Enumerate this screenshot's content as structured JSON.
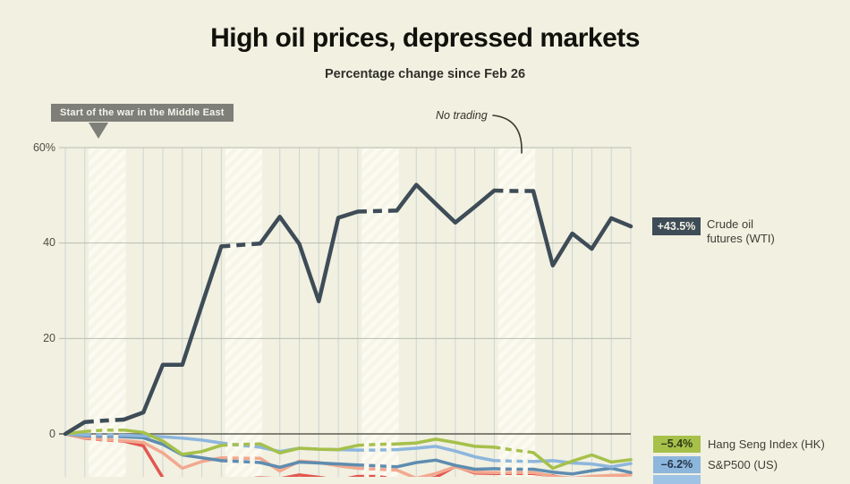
{
  "header": {
    "title": "High oil prices, depressed markets",
    "subtitle": "Percentage change since Feb 26"
  },
  "annotations": {
    "war_label": "Start of the war in the Middle East",
    "no_trading_label": "No trading"
  },
  "y_axis": {
    "labels": [
      "60%",
      "40",
      "20",
      "0"
    ],
    "values": [
      60,
      40,
      20,
      0
    ]
  },
  "legend": {
    "crude": {
      "badge": "+43.5%",
      "line1": "Crude oil",
      "line2": "futures (WTI)",
      "badge_color": "#3e4c57"
    },
    "hang_seng": {
      "badge": "–5.4%",
      "label": "Hang Seng Index (HK)",
      "badge_color": "#a6c04a"
    },
    "sp500": {
      "badge": "–6.2%",
      "label": "S&P500 (US)",
      "badge_color": "#8db6dd"
    },
    "cut_badge_color": "#9fc3e4"
  },
  "colors": {
    "background": "#f1f0e1",
    "band_base": "#f6f5e8",
    "band_stripe": "#fcfbf2",
    "vgrid": "#ccd6d3",
    "hgrid": "#b9beb2",
    "zero_line": "#5c5c52",
    "annotation_box": "#7f7f79",
    "arrow": "#3a3a30"
  },
  "chart_data": {
    "type": "line",
    "title": "High oil prices, depressed markets",
    "subtitle": "Percentage change since Feb 26",
    "x_unit": "days since Feb 26 (weekends hatched, no x tick labels visible)",
    "ylabel": "percent change",
    "ylim": [
      -9,
      60
    ],
    "grid_values": [
      60,
      40,
      20,
      0
    ],
    "weekend_bands_days": [
      [
        1.2,
        3.1
      ],
      [
        8.2,
        10.1
      ],
      [
        15.2,
        17.1
      ],
      [
        22.2,
        24.1
      ]
    ],
    "dashed_segment_indices": [
      1,
      2,
      8,
      9,
      15,
      16,
      22,
      23
    ],
    "series": [
      {
        "name": "unlabeled-red",
        "label_visible": false,
        "color": "#e2574e",
        "width": 3.5,
        "values": [
          0,
          -0.9,
          -1.3,
          -1.5,
          -2.5,
          -9.2,
          -11.0,
          -10.6,
          -9.7,
          -9.4,
          -9.2,
          -9.4,
          -8.6,
          -9.1,
          -9.7,
          -8.9,
          -8.9,
          -9.5,
          -9.9,
          -9.1,
          -6.8,
          -8.2,
          -8.3,
          -8.3,
          -8.3,
          -8.8,
          -9.6,
          -9.4,
          -9.0,
          -9.4
        ]
      },
      {
        "name": "unlabeled-salmon",
        "label_visible": false,
        "color": "#f2a88f",
        "width": 3.5,
        "values": [
          0,
          -0.8,
          -1.2,
          -1.4,
          -1.8,
          -4.0,
          -7.2,
          -5.8,
          -5.0,
          -5.1,
          -5.1,
          -7.8,
          -5.7,
          -6.0,
          -6.7,
          -7.2,
          -7.4,
          -7.6,
          -9.3,
          -8.3,
          -6.9,
          -8.0,
          -8.1,
          -8.1,
          -8.1,
          -8.9,
          -9.3,
          -8.9,
          -8.7,
          -8.6
        ]
      },
      {
        "name": "unlabeled-steel-blue",
        "label_visible": false,
        "color": "#5e8cb0",
        "width": 3.5,
        "values": [
          0,
          -0.4,
          -0.5,
          -0.6,
          -0.8,
          -2.2,
          -4.4,
          -5.0,
          -5.6,
          -5.8,
          -6.0,
          -7.0,
          -5.9,
          -6.1,
          -6.3,
          -6.5,
          -6.7,
          -6.9,
          -6.0,
          -5.5,
          -6.6,
          -7.4,
          -7.3,
          -7.4,
          -7.4,
          -8.0,
          -8.4,
          -7.7,
          -7.2,
          -8.1
        ]
      },
      {
        "name": "S&P500 (US)",
        "label_visible": true,
        "end_value": "-6.2%",
        "color": "#8db6dd",
        "width": 3.5,
        "values": [
          0,
          -0.2,
          -0.2,
          -0.3,
          -0.4,
          -0.6,
          -0.9,
          -1.3,
          -1.9,
          -2.4,
          -2.8,
          -3.7,
          -3.0,
          -3.2,
          -3.3,
          -3.4,
          -3.4,
          -3.3,
          -3.0,
          -2.6,
          -3.6,
          -4.8,
          -5.6,
          -5.7,
          -5.8,
          -5.6,
          -6.1,
          -6.3,
          -6.9,
          -6.2
        ]
      },
      {
        "name": "Hang Seng Index (HK)",
        "label_visible": true,
        "end_value": "-5.4%",
        "color": "#a6c04a",
        "width": 3.5,
        "values": [
          0,
          0.5,
          0.8,
          0.8,
          0.3,
          -1.5,
          -4.3,
          -3.7,
          -2.4,
          -2.2,
          -2.1,
          -4.0,
          -3.0,
          -3.2,
          -3.3,
          -2.4,
          -2.2,
          -2.1,
          -1.9,
          -1.1,
          -1.8,
          -2.6,
          -2.8,
          -3.4,
          -3.9,
          -7.2,
          -5.7,
          -4.4,
          -5.9,
          -5.4
        ]
      },
      {
        "name": "Crude oil futures (WTI)",
        "label_visible": true,
        "end_value": "+43.5%",
        "color": "#3e4c57",
        "width": 4.5,
        "values": [
          0,
          2.5,
          2.8,
          3.0,
          4.5,
          14.5,
          14.5,
          27.0,
          39.3,
          39.6,
          39.9,
          45.5,
          39.8,
          27.8,
          45.3,
          46.6,
          46.7,
          46.8,
          52.2,
          48.2,
          44.3,
          47.6,
          51.0,
          50.9,
          50.9,
          35.3,
          42.0,
          38.8,
          45.2,
          43.5
        ]
      }
    ]
  }
}
